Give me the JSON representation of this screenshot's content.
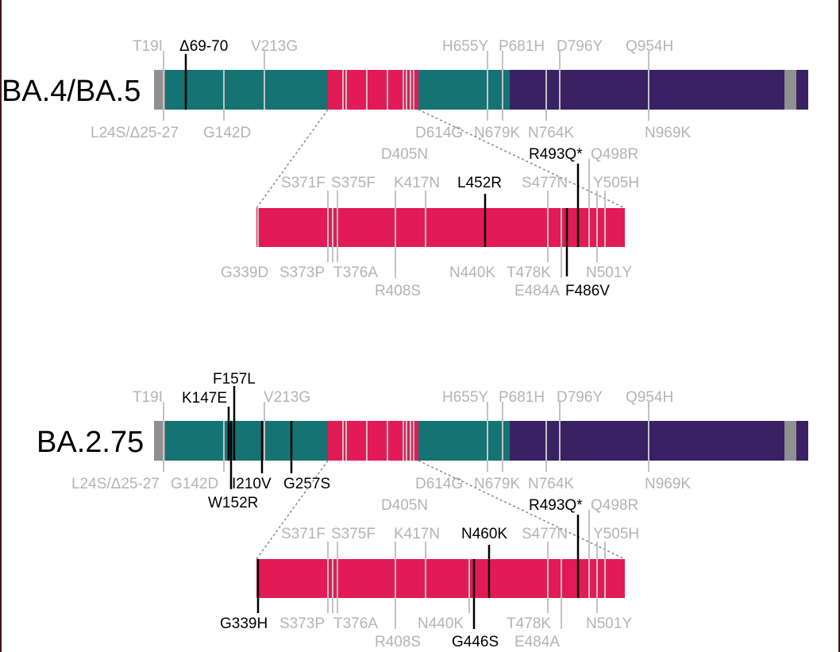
{
  "panels": [
    {
      "variant": "BA.4/BA.5",
      "top_labels": [
        "T19I",
        "Δ69-70",
        "V213G",
        "H655Y",
        "P681H",
        "D796Y",
        "Q954H"
      ],
      "bottom_labels": [
        "L24S/Δ25-27",
        "G142D",
        "D614G",
        "N679K",
        "N764K",
        "N969K"
      ],
      "rbd_top_labels": [
        "D405N",
        "S371F",
        "S375F",
        "K417N",
        "L452R",
        "R493Q*",
        "Q498R",
        "S477N",
        "Y505H"
      ],
      "rbd_bottom_labels": [
        "G339D",
        "S373P",
        "T376A",
        "R408S",
        "N440K",
        "T478K",
        "E484A",
        "F486V",
        "N501Y"
      ],
      "highlighted": [
        "Δ69-70",
        "L452R",
        "R493Q*",
        "F486V"
      ]
    },
    {
      "variant": "BA.2.75",
      "top_labels": [
        "F157L",
        "K147E",
        "T19I",
        "V213G",
        "H655Y",
        "P681H",
        "D796Y",
        "Q954H"
      ],
      "bottom_labels": [
        "L24S/Δ25-27",
        "G142D",
        "I210V",
        "G257S",
        "W152R",
        "D614G",
        "N679K",
        "N764K",
        "N969K"
      ],
      "rbd_top_labels": [
        "D405N",
        "R493Q*",
        "Q498R",
        "S371F",
        "S375F",
        "K417N",
        "N460K",
        "S477N",
        "Y505H"
      ],
      "rbd_bottom_labels": [
        "G339H",
        "S373P",
        "T376A",
        "N440K",
        "T478K",
        "N501Y",
        "R408S",
        "G446S",
        "E484A"
      ],
      "highlighted": [
        "F157L",
        "K147E",
        "I210V",
        "G257S",
        "W152R",
        "R493Q*",
        "N460K",
        "G339H",
        "G446S"
      ]
    }
  ],
  "colors": {
    "ntd": "#167373",
    "rbd": "#e21a56",
    "s2": "#392163",
    "grey_segment": "#909090",
    "mutation_line_grey": "#c3c3c3",
    "mutation_line_black": "#000000",
    "label_grey": "#b4b4b4",
    "label_black": "#000000"
  }
}
